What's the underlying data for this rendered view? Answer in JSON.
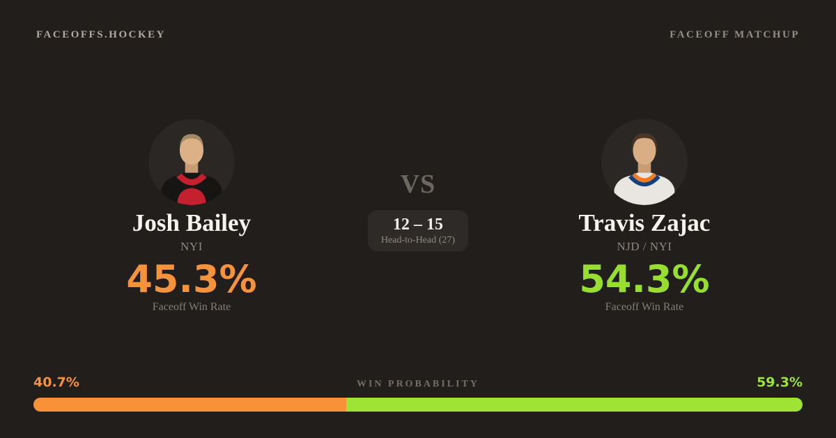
{
  "header": {
    "brand": "FACEOFFS.HOCKEY",
    "page_label": "FACEOFF MATCHUP"
  },
  "matchup": {
    "vs_label": "VS",
    "head_to_head": {
      "score": "12 – 15",
      "label": "Head-to-Head (27)"
    },
    "players": [
      {
        "name": "Josh Bailey",
        "team": "NYI",
        "win_rate": "45.3%",
        "stat_label": "Faceoff Win Rate",
        "accent_color": "#f5923c",
        "avatar": "josh-bailey-headshot"
      },
      {
        "name": "Travis Zajac",
        "team": "NJD / NYI",
        "win_rate": "54.3%",
        "stat_label": "Faceoff Win Rate",
        "accent_color": "#98de31",
        "avatar": "travis-zajac-headshot"
      }
    ]
  },
  "win_probability": {
    "title": "WIN PROBABILITY",
    "left": {
      "value": "40.7%",
      "percent": 40.7,
      "color": "#f89138"
    },
    "right": {
      "value": "59.3%",
      "percent": 59.3,
      "color": "#9fe334"
    }
  },
  "colors": {
    "background": "#211e1b",
    "panel": "#2d2a27",
    "avatar_background": "#2a2725",
    "text_primary": "#f6f2ee",
    "text_muted": "#8e8780"
  }
}
